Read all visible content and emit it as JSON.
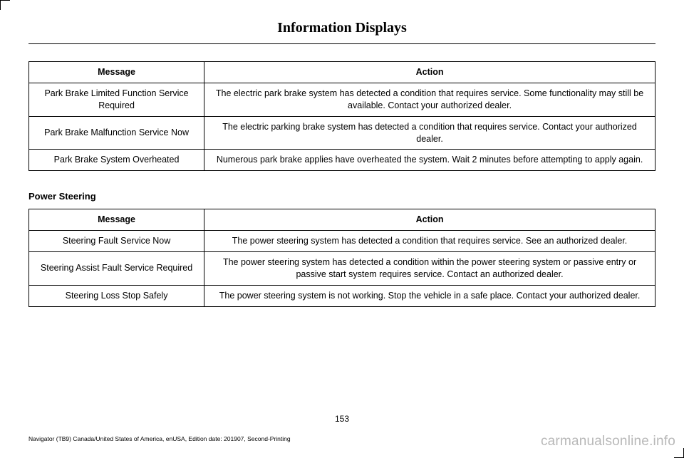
{
  "page": {
    "title": "Information Displays",
    "number": "153",
    "printInfo": "Navigator (TB9) Canada/United States of America, enUSA, Edition date: 201907, Second-Printing",
    "watermark": "carmanualsonline.info"
  },
  "table1": {
    "headers": {
      "message": "Message",
      "action": "Action"
    },
    "rows": [
      {
        "message": "Park Brake Limited Function Service Required",
        "action": "The electric park brake system has detected a condition that requires service. Some functionality may still be available. Contact your authorized dealer."
      },
      {
        "message": "Park Brake Malfunction Service Now",
        "action": "The electric parking brake system has detected a condition that requires service. Contact your authorized dealer."
      },
      {
        "message": "Park Brake System Overheated",
        "action": "Numerous park brake applies have overheated the system. Wait 2 minutes before attempting to apply again."
      }
    ]
  },
  "section2": {
    "heading": "Power Steering"
  },
  "table2": {
    "headers": {
      "message": "Message",
      "action": "Action"
    },
    "rows": [
      {
        "message": "Steering Fault Service Now",
        "action": "The power steering system has detected a condition that requires service. See an authorized dealer."
      },
      {
        "message": "Steering Assist Fault Service Required",
        "action": "The power steering system has detected a condition within the power steering system or passive entry or passive start system requires service. Contact an authorized dealer."
      },
      {
        "message": "Steering Loss Stop Safely",
        "action": "The power steering system is not working. Stop the vehicle in a safe place. Contact your authorized dealer."
      }
    ]
  }
}
